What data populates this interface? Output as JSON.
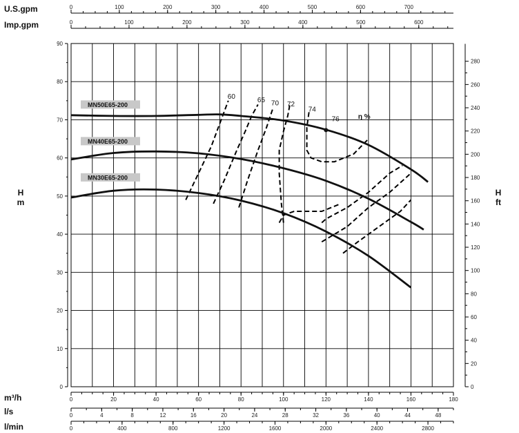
{
  "chart_data": {
    "type": "line",
    "axes": {
      "usgpm": {
        "label": "U.S.gpm",
        "ticks": [
          "0",
          "100",
          "200",
          "300",
          "400",
          "500",
          "600",
          "700"
        ],
        "values": [
          0,
          100,
          200,
          300,
          400,
          500,
          600,
          700
        ]
      },
      "impgpm": {
        "label": "Imp.gpm",
        "ticks": [
          "0",
          "100",
          "200",
          "300",
          "400",
          "500",
          "600"
        ],
        "values": [
          0,
          100,
          200,
          300,
          400,
          500,
          600
        ]
      },
      "m3h": {
        "label": "m³/h",
        "ticks": [
          "0",
          "20",
          "40",
          "60",
          "80",
          "100",
          "120",
          "140",
          "160",
          "180"
        ],
        "values": [
          0,
          20,
          40,
          60,
          80,
          100,
          120,
          140,
          160,
          180
        ],
        "range": [
          0,
          180
        ]
      },
      "ls": {
        "label": "l/s",
        "ticks": [
          "0",
          "4",
          "8",
          "12",
          "16",
          "20",
          "24",
          "28",
          "32",
          "36",
          "40",
          "44",
          "48"
        ],
        "values": [
          0,
          4,
          8,
          12,
          16,
          20,
          24,
          28,
          32,
          36,
          40,
          44,
          48
        ]
      },
      "lmin": {
        "label": "l/min",
        "ticks": [
          "0",
          "400",
          "800",
          "1200",
          "1600",
          "2000",
          "2400",
          "2800"
        ],
        "values": [
          0,
          400,
          800,
          1200,
          1600,
          2000,
          2400,
          2800
        ]
      },
      "head_m": {
        "label_top": "H",
        "label_bottom": "m",
        "ticks": [
          "0",
          "10",
          "20",
          "30",
          "40",
          "50",
          "60",
          "70",
          "80",
          "90"
        ],
        "values": [
          0,
          10,
          20,
          30,
          40,
          50,
          60,
          70,
          80,
          90
        ],
        "range": [
          0,
          90
        ]
      },
      "head_ft": {
        "label_top": "H",
        "label_bottom": "ft",
        "ticks": [
          "0",
          "20",
          "40",
          "60",
          "80",
          "100",
          "120",
          "140",
          "160",
          "180",
          "200",
          "220",
          "240",
          "260",
          "280"
        ],
        "values": [
          0,
          20,
          40,
          60,
          80,
          100,
          120,
          140,
          160,
          180,
          200,
          220,
          240,
          260,
          280
        ]
      }
    },
    "grid": true,
    "series": [
      {
        "name": "MN50E65-200",
        "x": [
          0,
          20,
          40,
          60,
          70,
          80,
          100,
          120,
          140,
          160,
          168
        ],
        "y": [
          71.2,
          71.0,
          71.0,
          71.3,
          71.4,
          71.0,
          69.8,
          67.4,
          63.4,
          57.0,
          53.7
        ]
      },
      {
        "name": "MN40E65-200",
        "x": [
          0,
          20,
          40,
          60,
          80,
          100,
          120,
          140,
          160,
          166
        ],
        "y": [
          59.6,
          61.3,
          61.7,
          61.2,
          59.7,
          57.3,
          54.0,
          49.3,
          43.2,
          41.2
        ]
      },
      {
        "name": "MN30E65-200",
        "x": [
          0,
          20,
          40,
          60,
          80,
          100,
          120,
          140,
          160
        ],
        "y": [
          49.6,
          51.4,
          51.7,
          50.8,
          48.8,
          45.5,
          40.7,
          34.3,
          26.0
        ]
      }
    ],
    "efficiency_unit_label": "η %",
    "efficiency_curves": [
      {
        "label": "60",
        "x": [
          54,
          60,
          66,
          70,
          74
        ],
        "y": [
          49,
          56,
          63,
          69,
          75
        ]
      },
      {
        "label": "65",
        "x": [
          67,
          72,
          78,
          82,
          85,
          88
        ],
        "y": [
          48,
          54,
          62,
          67,
          71,
          74
        ]
      },
      {
        "label": "70",
        "x": [
          79,
          83,
          88,
          92,
          95
        ],
        "y": [
          47,
          54,
          62,
          68,
          73
        ]
      },
      {
        "label": "72",
        "x": [
          100,
          99,
          98,
          98,
          100,
          102,
          103
        ],
        "y": [
          43,
          48,
          56,
          62,
          67,
          71,
          74
        ]
      },
      {
        "label": "74",
        "x": [
          112,
          111,
          111,
          113,
          118,
          124,
          133,
          140
        ],
        "y": [
          72,
          68,
          62,
          60,
          59,
          59,
          61,
          65
        ]
      },
      {
        "label": "74",
        "x": [
          118,
          120,
          130,
          140,
          150,
          156
        ],
        "y": [
          43,
          44,
          47,
          51,
          56,
          58
        ]
      },
      {
        "label": "74",
        "x": [
          98,
          100,
          105,
          110,
          118,
          127
        ],
        "y": [
          43,
          45,
          46,
          46,
          46,
          48
        ]
      },
      {
        "label": "76",
        "x": [
          118,
          130,
          140,
          150,
          160
        ],
        "y": [
          38,
          42,
          47,
          51,
          56
        ]
      },
      {
        "label": "76",
        "x": [
          128,
          135,
          145,
          155,
          160
        ],
        "y": [
          35,
          38,
          42,
          46,
          49
        ]
      }
    ],
    "efficiency_point": {
      "label": "76",
      "x": 120,
      "y": 67.3
    },
    "model_labels": [
      "MN50E65-200",
      "MN40E65-200",
      "MN30E65-200"
    ]
  }
}
